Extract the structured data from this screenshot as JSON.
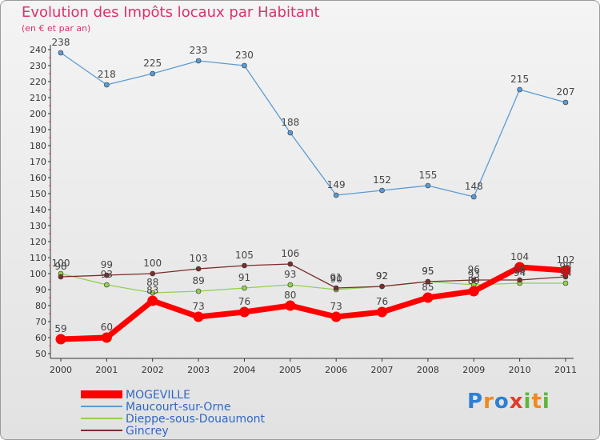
{
  "chart_data": {
    "type": "line",
    "title": "Evolution des Impôts locaux par Habitant",
    "subtitle": "(en € et par an)",
    "xlabel": "",
    "ylabel": "",
    "x": [
      "2000",
      "2001",
      "2002",
      "2003",
      "2004",
      "2005",
      "2006",
      "2007",
      "2008",
      "2009",
      "2010",
      "2011"
    ],
    "ylim": [
      50,
      240
    ],
    "yticks": [
      50,
      60,
      70,
      80,
      90,
      100,
      110,
      120,
      130,
      140,
      150,
      160,
      170,
      180,
      190,
      200,
      210,
      220,
      230,
      240
    ],
    "grid": false,
    "legend_position": "bottom-left",
    "series": [
      {
        "name": "Maucourt-sur-Orne",
        "color": "#5b9bd5",
        "values": [
          238,
          218,
          225,
          233,
          230,
          188,
          149,
          152,
          155,
          148,
          215,
          207
        ],
        "labels": [
          "238",
          "218",
          "225",
          "233",
          "230",
          "188",
          "149",
          "152",
          "155",
          "148",
          "215",
          "207"
        ]
      },
      {
        "name": "Dieppe-sous-Douaumont",
        "color": "#92d050",
        "values": [
          100,
          93,
          88,
          89,
          91,
          93,
          90,
          92,
          95,
          93,
          94,
          94
        ],
        "labels": [
          "100",
          "93",
          "88",
          "89",
          "91",
          "93",
          "90",
          "92",
          "95",
          "93",
          "94",
          "94"
        ]
      },
      {
        "name": "Gincrey",
        "color": "#7a2e2e",
        "values": [
          98,
          99,
          100,
          103,
          105,
          106,
          91,
          92,
          95,
          96,
          96,
          98
        ],
        "labels": [
          "98",
          "99",
          "100",
          "103",
          "105",
          "106",
          "91",
          "92",
          "95",
          "96",
          "96",
          "98"
        ]
      },
      {
        "name": "MOGEVILLE",
        "color": "#ff0000",
        "values": [
          59,
          60,
          83,
          73,
          76,
          80,
          73,
          76,
          85,
          89,
          104,
          102
        ],
        "labels": [
          "59",
          "60",
          "83",
          "73",
          "76",
          "80",
          "73",
          "76",
          "85",
          "89",
          "104",
          "102"
        ]
      }
    ],
    "legend": [
      "MOGEVILLE",
      "Maucourt-sur-Orne",
      "Dieppe-sous-Douaumont",
      "Gincrey"
    ]
  },
  "logo": {
    "letters": [
      "P",
      "r",
      "o",
      "x",
      "i",
      "t",
      "i"
    ]
  }
}
